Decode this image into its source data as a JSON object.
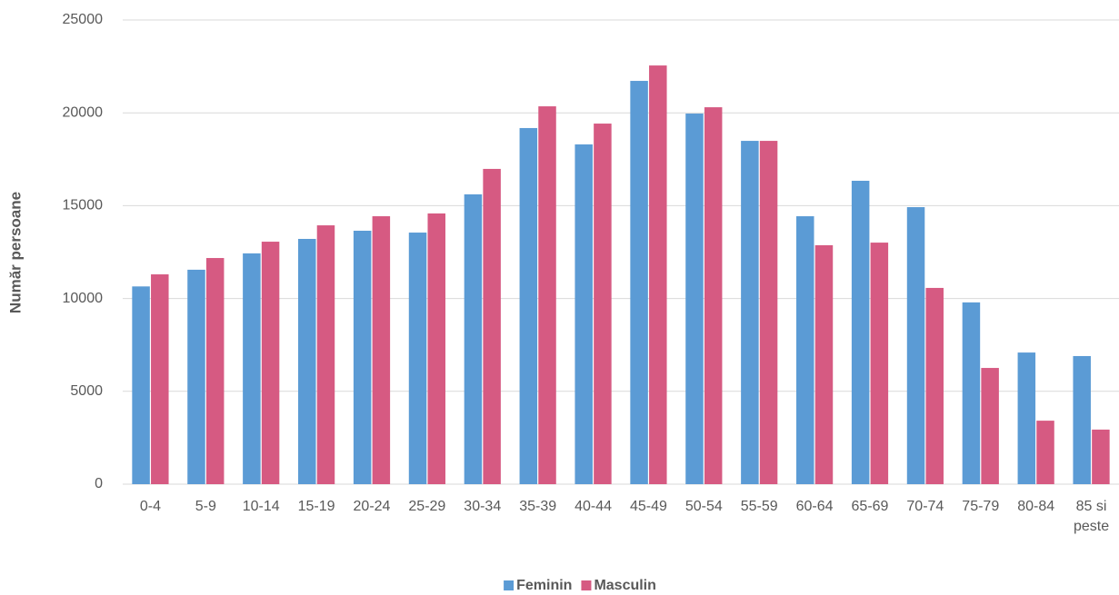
{
  "chart_data": {
    "type": "bar",
    "y_label": "Număr persoane",
    "categories": [
      "0-4",
      "5-9",
      "10-14",
      "15-19",
      "20-24",
      "25-29",
      "30-34",
      "35-39",
      "40-44",
      "45-49",
      "50-54",
      "55-59",
      "60-64",
      "65-69",
      "70-74",
      "75-79",
      "80-84",
      "85 si peste"
    ],
    "series": [
      {
        "name": "Feminin",
        "color": "#5b9bd5",
        "values": [
          10650,
          11550,
          12430,
          13210,
          13650,
          13550,
          15610,
          19180,
          18300,
          21720,
          19960,
          18490,
          14430,
          16340,
          14920,
          9790,
          7090,
          6900
        ]
      },
      {
        "name": "Masculin",
        "color": "#d65a82",
        "values": [
          11300,
          12180,
          13060,
          13940,
          14430,
          14580,
          16980,
          20350,
          19420,
          22550,
          20300,
          18490,
          12870,
          13010,
          10570,
          6260,
          3420,
          2940
        ]
      }
    ],
    "ylim": [
      0,
      25000
    ],
    "yticks": [
      0,
      5000,
      10000,
      15000,
      20000,
      25000
    ],
    "grid": true,
    "legend": "bottom"
  }
}
